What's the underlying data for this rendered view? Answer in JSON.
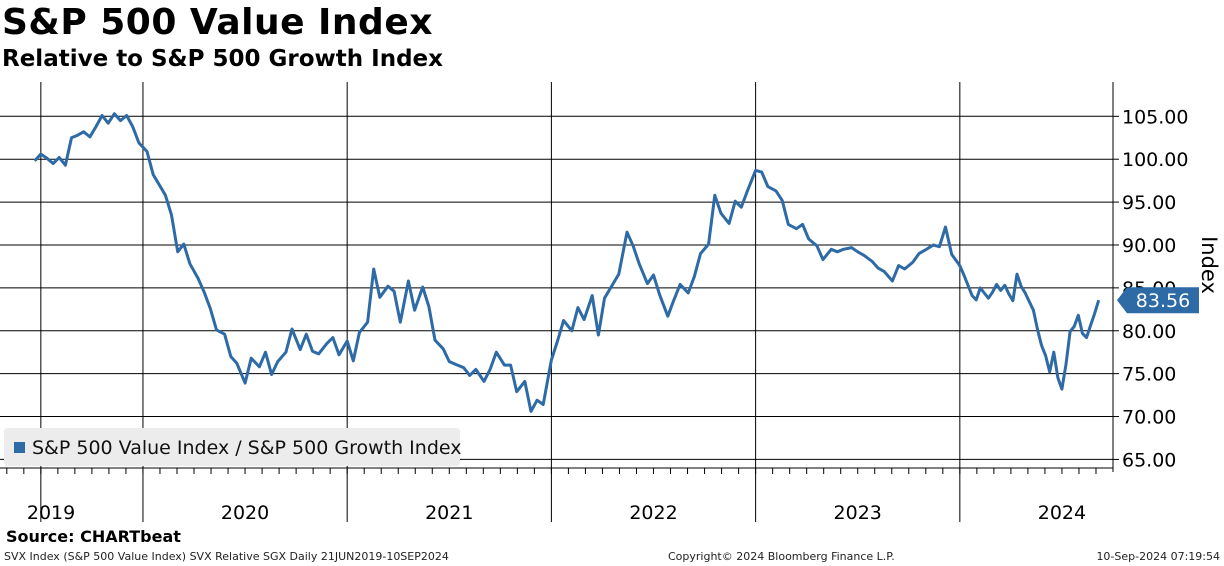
{
  "header": {
    "title": "S&P 500 Value Index",
    "subtitle": "Relative to S&P 500 Growth Index"
  },
  "footer": {
    "source": "Source: CHARTbeat",
    "left": "SVX Index (S&P 500 Value Index) SVX Relative SGX  Daily 21JUN2019-10SEP2024",
    "center": "Copyright© 2024 Bloomberg Finance L.P.",
    "right": "10-Sep-2024 07:19:54"
  },
  "legend": {
    "label": "S&P 500 Value Index / S&P 500 Growth Index"
  },
  "colors": {
    "line": "#2d6aa6",
    "grid": "#000000",
    "badge": "#2d6aa6",
    "badge_text": "#ffffff"
  },
  "chart_data": {
    "type": "line",
    "title": "S&P 500 Value Index",
    "subtitle": "Relative to S&P 500 Growth Index",
    "xlabel": "",
    "ylabel": "Index",
    "ylim": [
      64,
      109
    ],
    "xlim": [
      2019.3,
      2024.75
    ],
    "y_ticks": [
      65,
      70,
      75,
      80,
      85,
      90,
      95,
      100,
      105
    ],
    "y_tick_labels": [
      "65.00",
      "70.00",
      "75.00",
      "80.00",
      "85.00",
      "90.00",
      "95.00",
      "100.00",
      "105.00"
    ],
    "year_boundaries": [
      2019.5,
      2020,
      2021,
      2022,
      2023,
      2024
    ],
    "x_labels": [
      {
        "label": "2019",
        "x": 2019.55
      },
      {
        "label": "2020",
        "x": 2020.5
      },
      {
        "label": "2021",
        "x": 2021.5
      },
      {
        "label": "2022",
        "x": 2022.5
      },
      {
        "label": "2023",
        "x": 2023.5
      },
      {
        "label": "2024",
        "x": 2024.5
      }
    ],
    "last_value": 83.56,
    "last_value_label": "83.56",
    "grid": true,
    "legend_position": "bottom-left",
    "series": [
      {
        "name": "S&P 500 Value Index / S&P 500 Growth Index",
        "x": [
          2019.47,
          2019.5,
          2019.53,
          2019.56,
          2019.59,
          2019.62,
          2019.65,
          2019.68,
          2019.71,
          2019.74,
          2019.77,
          2019.8,
          2019.83,
          2019.86,
          2019.89,
          2019.92,
          2019.95,
          2019.98,
          2020.02,
          2020.05,
          2020.08,
          2020.11,
          2020.14,
          2020.17,
          2020.2,
          2020.23,
          2020.27,
          2020.3,
          2020.33,
          2020.36,
          2020.4,
          2020.43,
          2020.46,
          2020.5,
          2020.53,
          2020.57,
          2020.6,
          2020.63,
          2020.66,
          2020.7,
          2020.73,
          2020.77,
          2020.8,
          2020.83,
          2020.86,
          2020.9,
          2020.93,
          2020.96,
          2021.0,
          2021.03,
          2021.06,
          2021.1,
          2021.13,
          2021.16,
          2021.2,
          2021.23,
          2021.26,
          2021.3,
          2021.33,
          2021.37,
          2021.4,
          2021.43,
          2021.47,
          2021.5,
          2021.53,
          2021.57,
          2021.6,
          2021.63,
          2021.67,
          2021.7,
          2021.73,
          2021.77,
          2021.8,
          2021.83,
          2021.87,
          2021.9,
          2021.93,
          2021.96,
          2022.0,
          2022.03,
          2022.06,
          2022.1,
          2022.13,
          2022.16,
          2022.2,
          2022.23,
          2022.26,
          2022.3,
          2022.33,
          2022.37,
          2022.4,
          2022.43,
          2022.47,
          2022.5,
          2022.53,
          2022.57,
          2022.6,
          2022.63,
          2022.67,
          2022.7,
          2022.73,
          2022.77,
          2022.8,
          2022.83,
          2022.87,
          2022.9,
          2022.93,
          2022.96,
          2023.0,
          2023.03,
          2023.06,
          2023.1,
          2023.13,
          2023.16,
          2023.2,
          2023.23,
          2023.26,
          2023.3,
          2023.33,
          2023.37,
          2023.4,
          2023.43,
          2023.47,
          2023.5,
          2023.53,
          2023.57,
          2023.6,
          2023.63,
          2023.67,
          2023.7,
          2023.73,
          2023.77,
          2023.8,
          2023.83,
          2023.87,
          2023.9,
          2023.93,
          2023.96,
          2024.0,
          2024.02,
          2024.04,
          2024.06,
          2024.08,
          2024.1,
          2024.12,
          2024.14,
          2024.16,
          2024.18,
          2024.2,
          2024.22,
          2024.24,
          2024.26,
          2024.28,
          2024.3,
          2024.32,
          2024.34,
          2024.36,
          2024.38,
          2024.4,
          2024.42,
          2024.44,
          2024.46,
          2024.48,
          2024.5,
          2024.52,
          2024.54,
          2024.56,
          2024.58,
          2024.6,
          2024.62,
          2024.64,
          2024.66,
          2024.68
        ],
        "values": [
          99.8,
          100.6,
          100.1,
          99.5,
          100.2,
          99.3,
          102.5,
          102.8,
          103.2,
          102.6,
          103.8,
          105.1,
          104.2,
          105.3,
          104.5,
          105.1,
          103.8,
          101.9,
          100.9,
          98.2,
          97.0,
          95.8,
          93.5,
          89.2,
          90.1,
          87.8,
          86.1,
          84.5,
          82.6,
          80.1,
          79.6,
          77.0,
          76.2,
          73.9,
          76.8,
          75.8,
          77.5,
          74.9,
          76.4,
          77.5,
          80.2,
          77.8,
          79.6,
          77.6,
          77.3,
          78.5,
          79.2,
          77.2,
          78.8,
          76.5,
          79.8,
          81.0,
          87.2,
          83.9,
          85.2,
          84.6,
          81.0,
          85.8,
          82.4,
          85.1,
          82.8,
          78.9,
          77.9,
          76.4,
          76.1,
          75.7,
          74.8,
          75.5,
          74.1,
          75.5,
          77.5,
          76.0,
          76.0,
          72.9,
          74.1,
          70.6,
          71.9,
          71.4,
          76.6,
          78.8,
          81.2,
          80.0,
          82.7,
          81.3,
          84.1,
          79.5,
          83.8,
          85.4,
          86.6,
          91.5,
          89.9,
          87.8,
          85.5,
          86.5,
          84.2,
          81.7,
          83.6,
          85.4,
          84.4,
          86.3,
          89.0,
          90.1,
          95.8,
          93.7,
          92.5,
          95.1,
          94.4,
          96.3,
          98.7,
          98.5,
          96.8,
          96.3,
          95.2,
          92.4,
          91.9,
          92.4,
          90.7,
          89.9,
          88.3,
          89.5,
          89.2,
          89.5,
          89.7,
          89.2,
          88.8,
          88.1,
          87.3,
          86.9,
          85.8,
          87.6,
          87.2,
          88.0,
          89.0,
          89.4,
          90.0,
          89.8,
          92.1,
          88.9,
          87.6,
          86.5,
          85.3,
          84.1,
          83.6,
          85.0,
          84.4,
          83.8,
          84.5,
          85.4,
          84.7,
          85.3,
          84.3,
          83.5,
          86.6,
          85.2,
          84.4,
          83.4,
          82.4,
          80.2,
          78.3,
          77.1,
          75.2,
          77.5,
          74.5,
          73.2,
          76.1,
          79.9,
          80.5,
          81.8,
          79.7,
          79.2,
          80.6,
          82.0,
          83.56
        ]
      }
    ]
  }
}
